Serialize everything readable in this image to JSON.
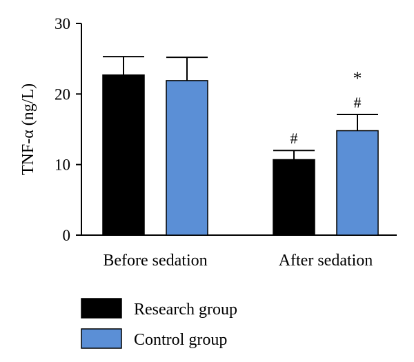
{
  "chart_data": {
    "type": "bar",
    "ylabel": "TNF-α (ng/L)",
    "ylim": [
      0,
      30
    ],
    "yticks": [
      0,
      10,
      20,
      30
    ],
    "categories": [
      "Before sedation",
      "After sedation"
    ],
    "series": [
      {
        "name": "Research group",
        "color": "#000000",
        "values": [
          22.7,
          10.7
        ],
        "errors": [
          2.6,
          1.3
        ]
      },
      {
        "name": "Control group",
        "color": "#5b8fd6",
        "values": [
          21.9,
          14.8
        ],
        "errors": [
          3.3,
          2.3
        ]
      }
    ],
    "annotations": [
      {
        "category": 1,
        "series": 0,
        "marks": [
          "#"
        ]
      },
      {
        "category": 1,
        "series": 1,
        "marks": [
          "#",
          "*"
        ]
      }
    ],
    "grid": false,
    "legend": "bottom-left"
  }
}
